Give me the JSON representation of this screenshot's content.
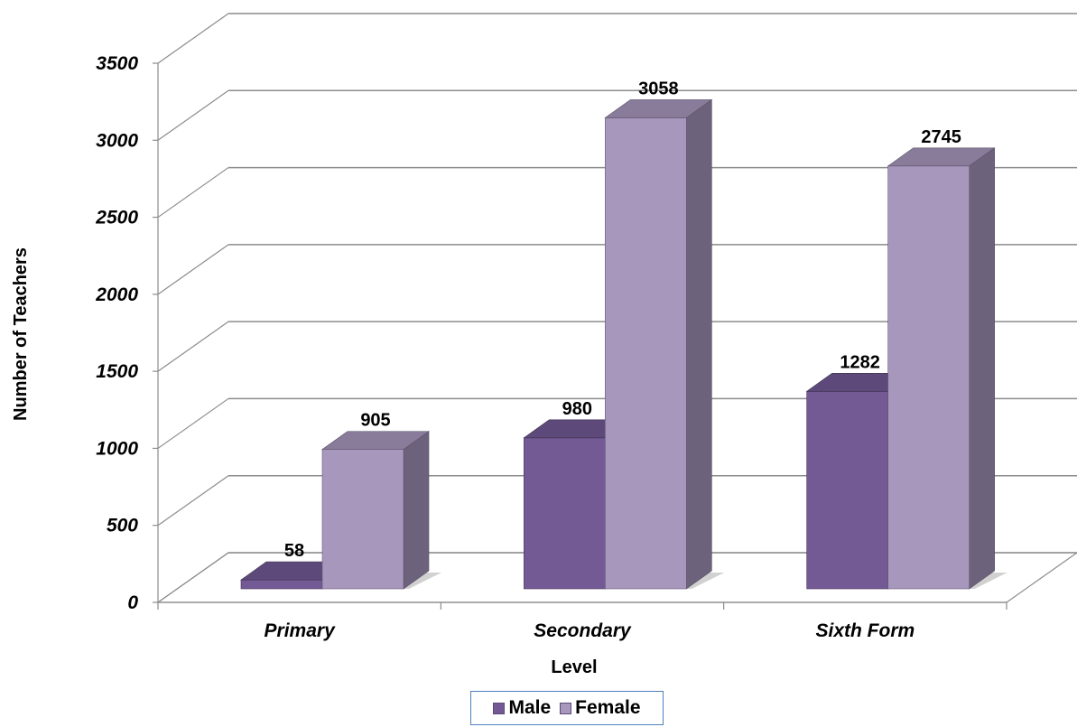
{
  "chart_data": {
    "type": "bar",
    "title": "",
    "xlabel": "Level",
    "ylabel": "Number of Teachers",
    "categories": [
      "Primary",
      "Secondary",
      "Sixth Form"
    ],
    "series": [
      {
        "name": "Male",
        "values": [
          58,
          980,
          1282
        ],
        "color": "#735a95"
      },
      {
        "name": "Female",
        "values": [
          905,
          3058,
          2745
        ],
        "color": "#a797bd"
      }
    ],
    "ylim": [
      0,
      3500
    ],
    "yticks": [
      "0",
      "500",
      "1000",
      "1500",
      "2000",
      "2500",
      "3000",
      "3500"
    ],
    "grid": true,
    "legend_position": "bottom",
    "style": "3d"
  }
}
